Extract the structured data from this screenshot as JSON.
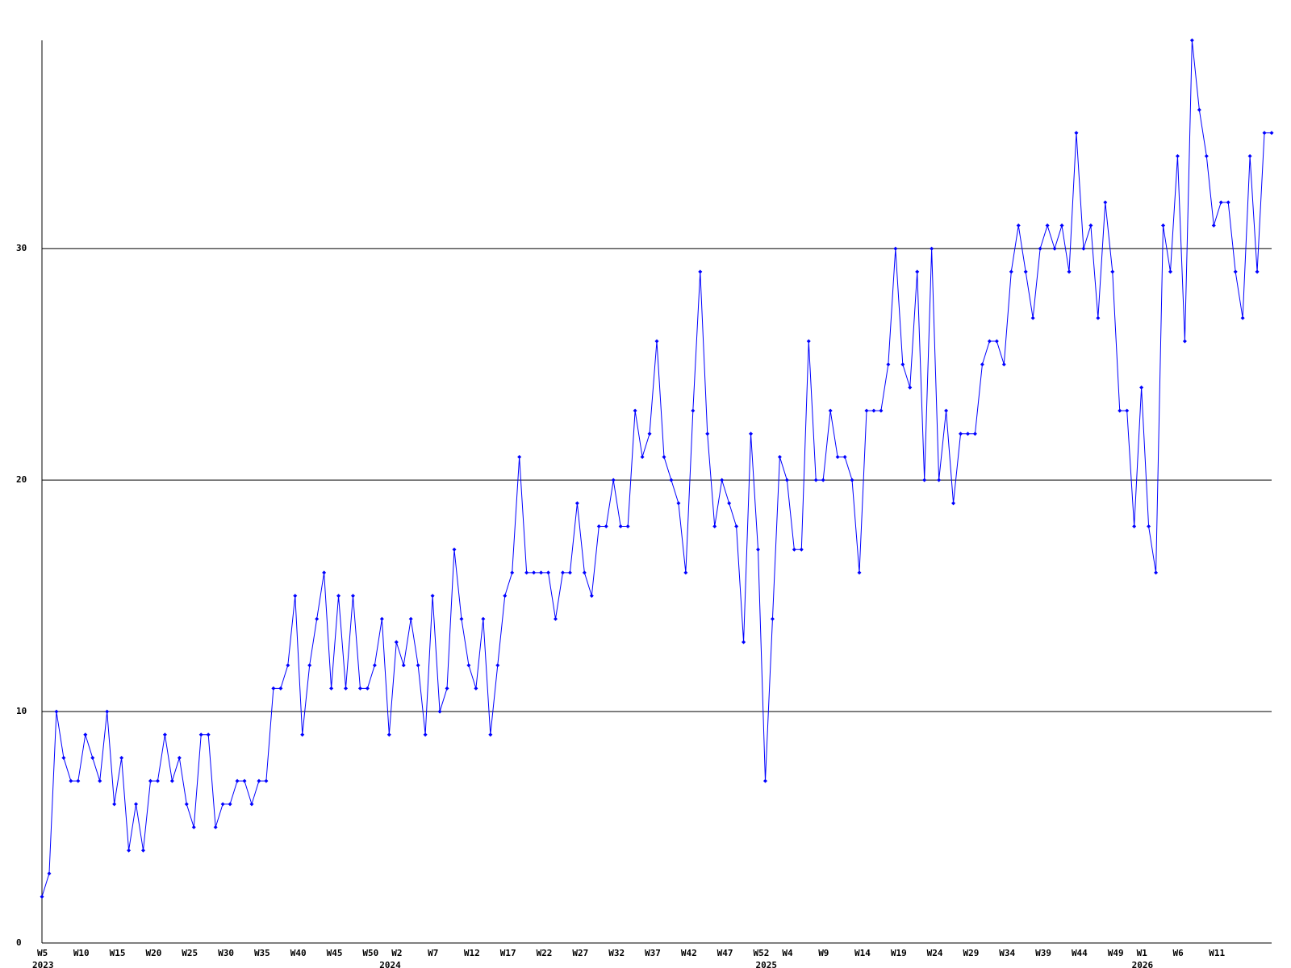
{
  "chart_data": {
    "type": "line",
    "categories": [
      "W5",
      null,
      null,
      null,
      null,
      "W10",
      null,
      null,
      null,
      null,
      "W15",
      null,
      null,
      null,
      null,
      "W20",
      null,
      null,
      null,
      null,
      "W25",
      null,
      null,
      null,
      null,
      "W30",
      null,
      null,
      null,
      null,
      "W35",
      null,
      null,
      null,
      null,
      "W40",
      null,
      null,
      null,
      null,
      "W45",
      null,
      null,
      null,
      null,
      "W50",
      null,
      null,
      null,
      "W2",
      null,
      null,
      null,
      null,
      "W7",
      null,
      null,
      null,
      null,
      "W12",
      null,
      null,
      null,
      null,
      "W17",
      null,
      null,
      null,
      null,
      "W22",
      null,
      null,
      null,
      null,
      "W27",
      null,
      null,
      null,
      null,
      "W32",
      null,
      null,
      null,
      null,
      "W37",
      null,
      null,
      null,
      null,
      "W42",
      null,
      null,
      null,
      null,
      "W47",
      null,
      null,
      null,
      null,
      "W52",
      null,
      null,
      null,
      "W4",
      null,
      null,
      null,
      null,
      "W9",
      null,
      null,
      null,
      null,
      "W14",
      null,
      null,
      null,
      null,
      "W19",
      null,
      null,
      null,
      null,
      "W24",
      null,
      null,
      null,
      null,
      "W29",
      null,
      null,
      null,
      null,
      "W34",
      null,
      null,
      null,
      null,
      "W39",
      null,
      null,
      null,
      null,
      "W44",
      null,
      null,
      null,
      null,
      "W49",
      null,
      null,
      null,
      "W1",
      null,
      null,
      null,
      null,
      "W6",
      null,
      null,
      null,
      null,
      "W11",
      null,
      null,
      null,
      null,
      null,
      null,
      null,
      null
    ],
    "years": [
      "2023",
      null,
      null,
      null,
      null,
      null,
      null,
      null,
      null,
      null,
      null,
      null,
      null,
      null,
      null,
      null,
      null,
      null,
      null,
      null,
      null,
      null,
      null,
      null,
      null,
      null,
      null,
      null,
      null,
      null,
      null,
      null,
      null,
      null,
      null,
      null,
      null,
      null,
      null,
      null,
      null,
      null,
      null,
      null,
      null,
      null,
      null,
      null,
      "2024",
      null,
      null,
      null,
      null,
      null,
      null,
      null,
      null,
      null,
      null,
      null,
      null,
      null,
      null,
      null,
      null,
      null,
      null,
      null,
      null,
      null,
      null,
      null,
      null,
      null,
      null,
      null,
      null,
      null,
      null,
      null,
      null,
      null,
      null,
      null,
      null,
      null,
      null,
      null,
      null,
      null,
      null,
      null,
      null,
      null,
      null,
      null,
      null,
      null,
      null,
      null,
      "2025",
      null,
      null,
      null,
      null,
      null,
      null,
      null,
      null,
      null,
      null,
      null,
      null,
      null,
      null,
      null,
      null,
      null,
      null,
      null,
      null,
      null,
      null,
      null,
      null,
      null,
      null,
      null,
      null,
      null,
      null,
      null,
      null,
      null,
      null,
      null,
      null,
      null,
      null,
      null,
      null,
      null,
      null,
      null,
      null,
      null,
      null,
      null,
      null,
      null,
      null,
      null,
      "2026",
      null,
      null,
      null,
      null,
      null,
      null,
      null,
      null,
      null,
      null,
      null,
      null,
      null,
      null,
      null,
      null,
      null
    ],
    "series": [
      {
        "color": "#0000ff",
        "values": [
          2,
          3,
          10,
          8,
          7,
          7,
          9,
          8,
          7,
          10,
          6,
          8,
          4,
          6,
          4,
          7,
          7,
          9,
          7,
          8,
          6,
          5,
          9,
          9,
          5,
          6,
          6,
          7,
          7,
          6,
          7,
          7,
          11,
          11,
          12,
          15,
          9,
          12,
          14,
          16,
          11,
          15,
          11,
          15,
          11,
          11,
          12,
          14,
          9,
          13,
          12,
          14,
          12,
          9,
          15,
          10,
          11,
          17,
          14,
          12,
          11,
          14,
          9,
          12,
          15,
          16,
          21,
          16,
          16,
          16,
          16,
          14,
          16,
          16,
          19,
          16,
          15,
          18,
          18,
          20,
          18,
          18,
          23,
          21,
          22,
          26,
          21,
          20,
          19,
          16,
          23,
          29,
          22,
          18,
          20,
          19,
          18,
          13,
          22,
          17,
          7,
          14,
          21,
          20,
          17,
          17,
          26,
          20,
          20,
          23,
          21,
          21,
          20,
          16,
          23,
          23,
          23,
          25,
          30,
          25,
          24,
          29,
          20,
          30,
          20,
          23,
          19,
          22,
          22,
          22,
          25,
          26,
          26,
          25,
          29,
          31,
          29,
          27,
          30,
          31,
          30,
          31,
          29,
          35,
          30,
          31,
          27,
          32,
          29,
          23,
          23,
          18,
          24,
          18,
          16,
          31,
          29,
          34,
          26,
          39,
          36,
          34,
          31,
          32,
          32,
          29,
          27,
          34,
          29,
          35,
          35
        ]
      }
    ],
    "ylim": [
      0,
      39
    ],
    "yticks": [
      0,
      10,
      20,
      30
    ],
    "grid": true
  }
}
